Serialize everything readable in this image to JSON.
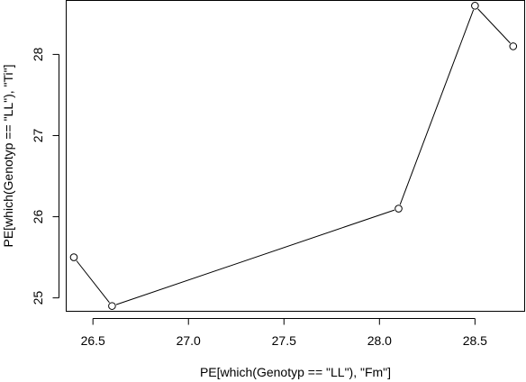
{
  "chart_data": {
    "type": "line",
    "title": "",
    "xlabel": "PE[which(Genotyp == \"LL\"), \"Fm\"]",
    "ylabel": "PE[which(Genotyp == \"LL\"), \"Ti\"]",
    "xlim": [
      26.36,
      28.76
    ],
    "ylim": [
      24.835,
      28.665
    ],
    "x_ticks": [
      "26.5",
      "27.0",
      "27.5",
      "28.0",
      "28.5"
    ],
    "y_ticks": [
      "25",
      "26",
      "27",
      "28"
    ],
    "grid": false,
    "markers": "open-circle",
    "series": [
      {
        "x": [
          26.4,
          26.6,
          28.1,
          28.5,
          28.7
        ],
        "y": [
          25.5,
          24.9,
          26.1,
          28.6,
          28.1
        ]
      }
    ]
  }
}
